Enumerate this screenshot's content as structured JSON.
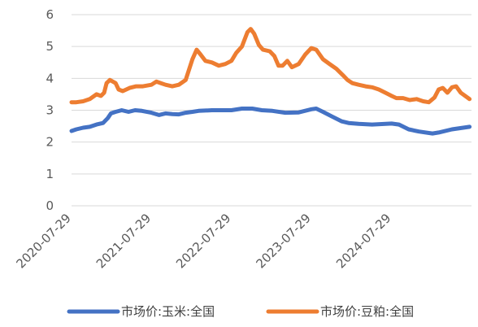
{
  "chart_data": {
    "type": "line",
    "title": "",
    "xlabel": "",
    "ylabel": "",
    "ylim": [
      0,
      6
    ],
    "yticks": [
      "0",
      "1",
      "2",
      "3",
      "4",
      "5",
      "6"
    ],
    "xlim": [
      "2020-07-29",
      "2025-07-29"
    ],
    "xticks": [
      "2020-07-29",
      "2021-07-29",
      "2022-07-29",
      "2023-07-29",
      "2024-07-29"
    ],
    "grid": "horizontal",
    "legend_position": "bottom",
    "series": [
      {
        "name": "市场价:玉米:全国",
        "color": "#4472c4",
        "points": [
          [
            "2020-07-29",
            2.35
          ],
          [
            "2020-08-20",
            2.4
          ],
          [
            "2020-09-20",
            2.45
          ],
          [
            "2020-10-20",
            2.48
          ],
          [
            "2020-11-20",
            2.55
          ],
          [
            "2020-12-20",
            2.6
          ],
          [
            "2021-01-10",
            2.75
          ],
          [
            "2021-01-25",
            2.9
          ],
          [
            "2021-02-15",
            2.95
          ],
          [
            "2021-03-15",
            3.0
          ],
          [
            "2021-04-15",
            2.95
          ],
          [
            "2021-05-15",
            3.0
          ],
          [
            "2021-06-15",
            2.98
          ],
          [
            "2021-07-29",
            2.92
          ],
          [
            "2021-09-01",
            2.85
          ],
          [
            "2021-10-01",
            2.9
          ],
          [
            "2021-11-01",
            2.88
          ],
          [
            "2021-12-01",
            2.87
          ],
          [
            "2022-01-01",
            2.92
          ],
          [
            "2022-02-01",
            2.95
          ],
          [
            "2022-03-01",
            2.98
          ],
          [
            "2022-05-01",
            3.0
          ],
          [
            "2022-07-29",
            3.0
          ],
          [
            "2022-09-15",
            3.05
          ],
          [
            "2022-11-01",
            3.05
          ],
          [
            "2022-12-15",
            3.0
          ],
          [
            "2023-02-01",
            2.98
          ],
          [
            "2023-04-01",
            2.92
          ],
          [
            "2023-06-01",
            2.93
          ],
          [
            "2023-07-29",
            3.03
          ],
          [
            "2023-08-20",
            3.05
          ],
          [
            "2023-09-20",
            2.95
          ],
          [
            "2023-11-01",
            2.8
          ],
          [
            "2023-12-15",
            2.65
          ],
          [
            "2024-01-15",
            2.6
          ],
          [
            "2024-03-01",
            2.57
          ],
          [
            "2024-05-01",
            2.55
          ],
          [
            "2024-07-29",
            2.58
          ],
          [
            "2024-09-01",
            2.55
          ],
          [
            "2024-10-15",
            2.4
          ],
          [
            "2024-12-01",
            2.33
          ],
          [
            "2025-02-01",
            2.27
          ],
          [
            "2025-03-01",
            2.3
          ],
          [
            "2025-05-01",
            2.4
          ],
          [
            "2025-07-20",
            2.48
          ]
        ]
      },
      {
        "name": "市场价:豆粕:全国",
        "color": "#ed7d31",
        "points": [
          [
            "2020-07-29",
            3.25
          ],
          [
            "2020-08-20",
            3.25
          ],
          [
            "2020-09-20",
            3.28
          ],
          [
            "2020-10-20",
            3.35
          ],
          [
            "2020-11-20",
            3.5
          ],
          [
            "2020-12-10",
            3.45
          ],
          [
            "2020-12-25",
            3.55
          ],
          [
            "2021-01-05",
            3.85
          ],
          [
            "2021-01-20",
            3.95
          ],
          [
            "2021-02-15",
            3.85
          ],
          [
            "2021-03-01",
            3.65
          ],
          [
            "2021-03-20",
            3.6
          ],
          [
            "2021-04-20",
            3.7
          ],
          [
            "2021-05-20",
            3.75
          ],
          [
            "2021-06-20",
            3.75
          ],
          [
            "2021-07-29",
            3.8
          ],
          [
            "2021-08-20",
            3.9
          ],
          [
            "2021-09-10",
            3.85
          ],
          [
            "2021-10-01",
            3.8
          ],
          [
            "2021-11-01",
            3.75
          ],
          [
            "2021-12-01",
            3.8
          ],
          [
            "2022-01-01",
            3.95
          ],
          [
            "2022-02-01",
            4.6
          ],
          [
            "2022-02-20",
            4.9
          ],
          [
            "2022-03-10",
            4.75
          ],
          [
            "2022-04-01",
            4.55
          ],
          [
            "2022-05-01",
            4.5
          ],
          [
            "2022-06-01",
            4.4
          ],
          [
            "2022-07-01",
            4.45
          ],
          [
            "2022-07-29",
            4.55
          ],
          [
            "2022-08-20",
            4.8
          ],
          [
            "2022-09-15",
            5.0
          ],
          [
            "2022-10-10",
            5.45
          ],
          [
            "2022-10-25",
            5.55
          ],
          [
            "2022-11-10",
            5.4
          ],
          [
            "2022-12-01",
            5.05
          ],
          [
            "2022-12-20",
            4.9
          ],
          [
            "2023-01-20",
            4.85
          ],
          [
            "2023-02-10",
            4.7
          ],
          [
            "2023-03-01",
            4.4
          ],
          [
            "2023-03-20",
            4.4
          ],
          [
            "2023-04-10",
            4.55
          ],
          [
            "2023-05-01",
            4.35
          ],
          [
            "2023-06-01",
            4.45
          ],
          [
            "2023-07-01",
            4.75
          ],
          [
            "2023-07-29",
            4.95
          ],
          [
            "2023-08-20",
            4.9
          ],
          [
            "2023-09-20",
            4.6
          ],
          [
            "2023-10-20",
            4.45
          ],
          [
            "2023-11-20",
            4.3
          ],
          [
            "2023-12-20",
            4.1
          ],
          [
            "2024-01-10",
            3.95
          ],
          [
            "2024-02-01",
            3.85
          ],
          [
            "2024-03-01",
            3.8
          ],
          [
            "2024-04-01",
            3.75
          ],
          [
            "2024-05-01",
            3.72
          ],
          [
            "2024-06-01",
            3.65
          ],
          [
            "2024-07-01",
            3.55
          ],
          [
            "2024-07-29",
            3.45
          ],
          [
            "2024-08-20",
            3.38
          ],
          [
            "2024-09-20",
            3.38
          ],
          [
            "2024-10-20",
            3.32
          ],
          [
            "2024-11-20",
            3.35
          ],
          [
            "2024-12-20",
            3.28
          ],
          [
            "2025-01-15",
            3.25
          ],
          [
            "2025-02-10",
            3.4
          ],
          [
            "2025-03-01",
            3.65
          ],
          [
            "2025-03-20",
            3.7
          ],
          [
            "2025-04-10",
            3.55
          ],
          [
            "2025-05-01",
            3.72
          ],
          [
            "2025-05-20",
            3.75
          ],
          [
            "2025-06-10",
            3.55
          ],
          [
            "2025-07-20",
            3.35
          ]
        ]
      }
    ]
  }
}
